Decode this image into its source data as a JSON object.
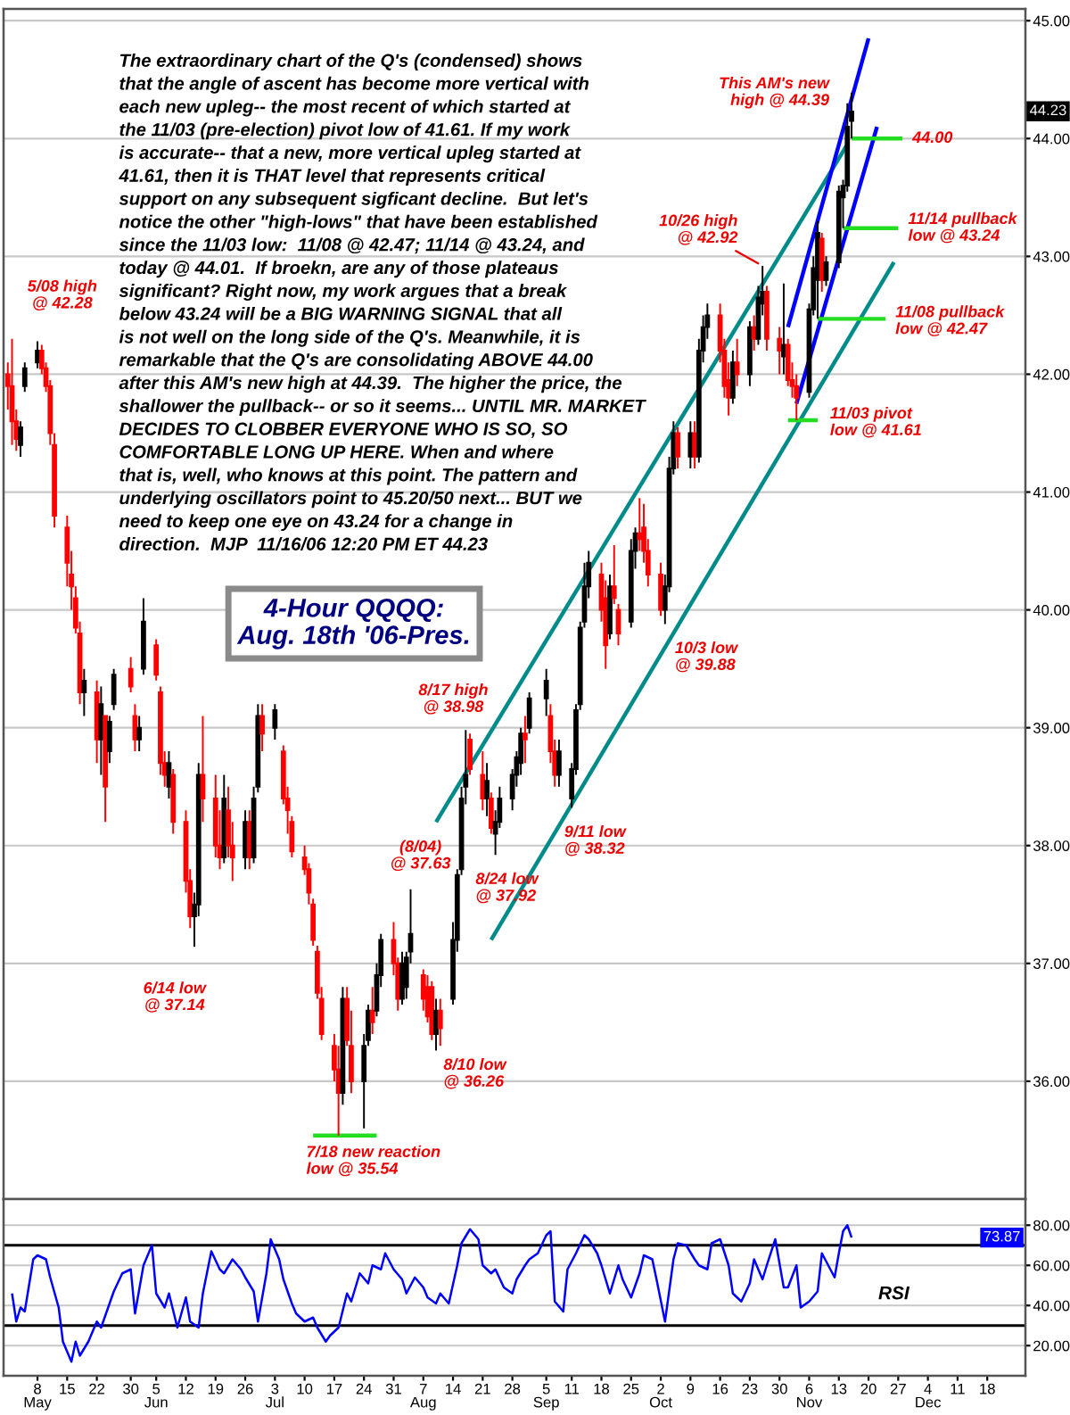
{
  "chart_data": [
    {
      "type": "candlestick",
      "title": "4-Hour QQQQ:\nAug. 18th '06-Pres.",
      "x": [
        "2006-05-01",
        "2006-05-02",
        "2006-05-03",
        "2006-05-04",
        "2006-05-05",
        "2006-05-08",
        "2006-05-09",
        "2006-05-10",
        "2006-05-11",
        "2006-05-12",
        "2006-05-15",
        "2006-05-16",
        "2006-05-17",
        "2006-05-18",
        "2006-05-19",
        "2006-05-22",
        "2006-05-23",
        "2006-05-24",
        "2006-05-25",
        "2006-05-26",
        "2006-05-30",
        "2006-05-31",
        "2006-06-01",
        "2006-06-02",
        "2006-06-05",
        "2006-06-06",
        "2006-06-07",
        "2006-06-08",
        "2006-06-09",
        "2006-06-12",
        "2006-06-13",
        "2006-06-14",
        "2006-06-15",
        "2006-06-16",
        "2006-06-19",
        "2006-06-20",
        "2006-06-21",
        "2006-06-22",
        "2006-06-23",
        "2006-06-26",
        "2006-06-27",
        "2006-06-28",
        "2006-06-29",
        "2006-06-30",
        "2006-07-03",
        "2006-07-05",
        "2006-07-06",
        "2006-07-07",
        "2006-07-10",
        "2006-07-11",
        "2006-07-12",
        "2006-07-13",
        "2006-07-14",
        "2006-07-17",
        "2006-07-18",
        "2006-07-19",
        "2006-07-20",
        "2006-07-21",
        "2006-07-24",
        "2006-07-25",
        "2006-07-26",
        "2006-07-27",
        "2006-07-28",
        "2006-07-31",
        "2006-08-01",
        "2006-08-02",
        "2006-08-03",
        "2006-08-04",
        "2006-08-07",
        "2006-08-08",
        "2006-08-09",
        "2006-08-10",
        "2006-08-11",
        "2006-08-14",
        "2006-08-15",
        "2006-08-16",
        "2006-08-17",
        "2006-08-18",
        "2006-08-21",
        "2006-08-22",
        "2006-08-23",
        "2006-08-24",
        "2006-08-25",
        "2006-08-28",
        "2006-08-29",
        "2006-08-30",
        "2006-08-31",
        "2006-09-01",
        "2006-09-05",
        "2006-09-06",
        "2006-09-07",
        "2006-09-08",
        "2006-09-11",
        "2006-09-12",
        "2006-09-13",
        "2006-09-14",
        "2006-09-15",
        "2006-09-18",
        "2006-09-19",
        "2006-09-20",
        "2006-09-21",
        "2006-09-22",
        "2006-09-25",
        "2006-09-26",
        "2006-09-27",
        "2006-09-28",
        "2006-09-29",
        "2006-10-02",
        "2006-10-03",
        "2006-10-04",
        "2006-10-05",
        "2006-10-06",
        "2006-10-09",
        "2006-10-10",
        "2006-10-11",
        "2006-10-12",
        "2006-10-13",
        "2006-10-16",
        "2006-10-17",
        "2006-10-18",
        "2006-10-19",
        "2006-10-20",
        "2006-10-23",
        "2006-10-24",
        "2006-10-25",
        "2006-10-26",
        "2006-10-27",
        "2006-10-30",
        "2006-10-31",
        "2006-11-01",
        "2006-11-02",
        "2006-11-03",
        "2006-11-06",
        "2006-11-07",
        "2006-11-08",
        "2006-11-09",
        "2006-11-10",
        "2006-11-13",
        "2006-11-14",
        "2006-11-15",
        "2006-11-16"
      ],
      "ohlc": [
        [
          42.0,
          42.1,
          41.7,
          41.9
        ],
        [
          41.9,
          42.3,
          41.4,
          41.6
        ],
        [
          41.6,
          41.7,
          41.35,
          41.45
        ],
        [
          41.4,
          41.6,
          41.3,
          41.55
        ],
        [
          41.9,
          42.1,
          41.85,
          42.05
        ],
        [
          42.1,
          42.28,
          42.05,
          42.2
        ],
        [
          42.2,
          42.25,
          42.0,
          42.05
        ],
        [
          42.05,
          42.1,
          41.85,
          41.9
        ],
        [
          41.9,
          41.95,
          41.4,
          41.5
        ],
        [
          41.4,
          41.5,
          40.7,
          40.8
        ],
        [
          40.7,
          40.8,
          40.2,
          40.4
        ],
        [
          40.3,
          40.5,
          40.0,
          40.2
        ],
        [
          40.1,
          40.2,
          39.8,
          39.85
        ],
        [
          39.8,
          39.9,
          39.2,
          39.3
        ],
        [
          39.3,
          39.5,
          39.1,
          39.4
        ],
        [
          39.3,
          39.4,
          38.7,
          38.9
        ],
        [
          38.9,
          39.35,
          38.6,
          39.2
        ],
        [
          39.1,
          39.1,
          38.2,
          38.5
        ],
        [
          38.8,
          39.1,
          38.7,
          39.05
        ],
        [
          39.2,
          39.5,
          39.15,
          39.45
        ],
        [
          39.5,
          39.6,
          39.3,
          39.35
        ],
        [
          39.1,
          39.2,
          38.8,
          38.9
        ],
        [
          38.9,
          39.1,
          38.8,
          39.0
        ],
        [
          39.5,
          40.1,
          39.45,
          39.9
        ],
        [
          39.7,
          39.75,
          39.4,
          39.45
        ],
        [
          39.3,
          39.35,
          38.6,
          38.7
        ],
        [
          38.7,
          38.8,
          38.5,
          38.6
        ],
        [
          38.5,
          38.8,
          38.4,
          38.7
        ],
        [
          38.6,
          38.65,
          38.1,
          38.2
        ],
        [
          38.2,
          38.3,
          37.6,
          37.7
        ],
        [
          37.7,
          37.8,
          37.3,
          37.4
        ],
        [
          37.4,
          37.6,
          37.14,
          37.5
        ],
        [
          37.5,
          38.7,
          37.4,
          38.6
        ],
        [
          38.6,
          39.1,
          38.2,
          38.4
        ],
        [
          38.4,
          38.6,
          37.9,
          38.0
        ],
        [
          38.0,
          38.3,
          37.8,
          37.9
        ],
        [
          37.9,
          38.6,
          37.85,
          38.4
        ],
        [
          38.3,
          38.5,
          37.9,
          38.0
        ],
        [
          38.0,
          38.2,
          37.7,
          37.9
        ],
        [
          37.9,
          38.3,
          37.8,
          38.2
        ],
        [
          38.2,
          38.3,
          37.8,
          37.9
        ],
        [
          37.9,
          38.5,
          37.85,
          38.4
        ],
        [
          38.5,
          39.2,
          38.45,
          39.1
        ],
        [
          39.1,
          39.2,
          38.8,
          38.95
        ],
        [
          39.0,
          39.2,
          38.9,
          39.15
        ],
        [
          38.8,
          38.85,
          38.35,
          38.4
        ],
        [
          38.4,
          38.5,
          38.1,
          38.3
        ],
        [
          38.2,
          38.25,
          37.9,
          37.95
        ],
        [
          37.9,
          38.0,
          37.75,
          37.8
        ],
        [
          37.8,
          37.85,
          37.5,
          37.6
        ],
        [
          37.5,
          37.55,
          37.15,
          37.2
        ],
        [
          37.1,
          37.15,
          36.7,
          36.75
        ],
        [
          36.7,
          36.8,
          36.35,
          36.4
        ],
        [
          36.3,
          36.4,
          36.0,
          36.1
        ],
        [
          36.1,
          36.3,
          35.54,
          35.9
        ],
        [
          35.9,
          36.8,
          35.8,
          36.7
        ],
        [
          36.7,
          36.8,
          36.3,
          36.35
        ],
        [
          36.3,
          36.6,
          35.9,
          36.0
        ],
        [
          36.0,
          36.4,
          35.6,
          36.3
        ],
        [
          36.35,
          36.65,
          36.3,
          36.6
        ],
        [
          36.6,
          36.8,
          36.4,
          36.5
        ],
        [
          36.6,
          37.0,
          36.55,
          36.9
        ],
        [
          36.9,
          37.25,
          36.8,
          37.2
        ],
        [
          37.2,
          37.35,
          36.9,
          37.0
        ],
        [
          37.0,
          37.05,
          36.6,
          36.7
        ],
        [
          36.7,
          37.1,
          36.65,
          37.0
        ],
        [
          36.8,
          37.1,
          36.7,
          37.05
        ],
        [
          37.1,
          37.63,
          37.0,
          37.25
        ],
        [
          36.9,
          36.95,
          36.6,
          36.7
        ],
        [
          36.8,
          36.9,
          36.5,
          36.55
        ],
        [
          36.8,
          36.85,
          36.35,
          36.4
        ],
        [
          36.4,
          36.7,
          36.26,
          36.6
        ],
        [
          36.6,
          36.7,
          36.3,
          36.45
        ],
        [
          36.7,
          37.35,
          36.65,
          37.2
        ],
        [
          37.2,
          37.8,
          37.1,
          37.75
        ],
        [
          37.8,
          38.5,
          37.75,
          38.4
        ],
        [
          38.5,
          38.98,
          38.35,
          38.6
        ],
        [
          38.9,
          38.95,
          38.6,
          38.65
        ],
        [
          38.6,
          38.8,
          38.3,
          38.4
        ],
        [
          38.4,
          38.7,
          38.25,
          38.55
        ],
        [
          38.4,
          38.45,
          38.1,
          38.15
        ],
        [
          38.1,
          38.3,
          37.92,
          38.2
        ],
        [
          38.2,
          38.5,
          38.15,
          38.4
        ],
        [
          38.4,
          38.65,
          38.3,
          38.6
        ],
        [
          38.6,
          38.8,
          38.5,
          38.75
        ],
        [
          38.7,
          39.0,
          38.6,
          38.95
        ],
        [
          38.95,
          39.1,
          38.7,
          38.9
        ],
        [
          39.0,
          39.3,
          38.95,
          39.25
        ],
        [
          39.25,
          39.5,
          39.1,
          39.4
        ],
        [
          39.1,
          39.2,
          38.7,
          38.8
        ],
        [
          38.8,
          38.9,
          38.5,
          38.6
        ],
        [
          38.6,
          38.9,
          38.5,
          38.8
        ],
        [
          38.4,
          38.7,
          38.32,
          38.65
        ],
        [
          38.65,
          39.2,
          38.6,
          39.15
        ],
        [
          39.2,
          39.9,
          39.15,
          39.85
        ],
        [
          39.9,
          40.4,
          39.85,
          40.2
        ],
        [
          40.2,
          40.5,
          40.1,
          40.4
        ],
        [
          40.3,
          40.4,
          39.9,
          40.0
        ],
        [
          40.1,
          40.25,
          39.5,
          39.7
        ],
        [
          39.8,
          40.3,
          39.75,
          40.2
        ],
        [
          40.2,
          40.55,
          40.05,
          40.1
        ],
        [
          40.0,
          40.05,
          39.7,
          39.8
        ],
        [
          39.9,
          40.6,
          39.85,
          40.5
        ],
        [
          40.5,
          40.7,
          40.35,
          40.65
        ],
        [
          40.65,
          40.95,
          40.5,
          40.6
        ],
        [
          40.7,
          40.9,
          40.4,
          40.5
        ],
        [
          40.5,
          40.6,
          40.2,
          40.3
        ],
        [
          40.3,
          40.4,
          39.95,
          40.0
        ],
        [
          40.0,
          40.3,
          39.88,
          40.2
        ],
        [
          40.2,
          41.3,
          40.15,
          41.2
        ],
        [
          41.2,
          41.6,
          41.15,
          41.5
        ],
        [
          41.5,
          41.55,
          41.2,
          41.3
        ],
        [
          41.3,
          41.6,
          41.2,
          41.5
        ],
        [
          41.5,
          41.6,
          41.2,
          41.3
        ],
        [
          41.3,
          42.3,
          41.25,
          42.2
        ],
        [
          42.2,
          42.5,
          42.1,
          42.4
        ],
        [
          42.4,
          42.6,
          42.3,
          42.5
        ],
        [
          42.5,
          42.6,
          42.1,
          42.2
        ],
        [
          42.2,
          42.3,
          41.8,
          41.9
        ],
        [
          41.95,
          42.1,
          41.65,
          41.8
        ],
        [
          41.8,
          42.2,
          41.75,
          42.1
        ],
        [
          42.1,
          42.3,
          41.9,
          42.0
        ],
        [
          42.0,
          42.45,
          41.9,
          42.4
        ],
        [
          42.4,
          42.5,
          42.2,
          42.3
        ],
        [
          42.3,
          42.75,
          42.25,
          42.65
        ],
        [
          42.6,
          42.92,
          42.5,
          42.7
        ],
        [
          42.7,
          42.75,
          42.2,
          42.3
        ],
        [
          42.3,
          42.4,
          42.0,
          42.2
        ],
        [
          42.15,
          42.77,
          42.0,
          42.25
        ],
        [
          42.25,
          42.3,
          41.9,
          41.95
        ],
        [
          41.95,
          42.1,
          41.8,
          41.9
        ],
        [
          41.9,
          42.0,
          41.61,
          41.8
        ],
        [
          41.85,
          42.6,
          41.8,
          42.55
        ],
        [
          42.55,
          43.0,
          42.5,
          42.9
        ],
        [
          42.8,
          43.3,
          42.47,
          43.2
        ],
        [
          43.15,
          43.2,
          42.7,
          42.8
        ],
        [
          42.8,
          43.0,
          42.75,
          42.95
        ],
        [
          42.95,
          43.6,
          42.9,
          43.55
        ],
        [
          43.5,
          43.65,
          43.24,
          43.6
        ],
        [
          43.6,
          44.3,
          43.55,
          44.1
        ],
        [
          44.15,
          44.39,
          44.0,
          44.23
        ]
      ],
      "colors": [
        "#ff0000",
        "#ff0000",
        "#ff0000",
        "#000000",
        "#000000",
        "#000000",
        "#ff0000",
        "#ff0000",
        "#ff0000",
        "#ff0000",
        "#ff0000",
        "#ff0000",
        "#ff0000",
        "#ff0000",
        "#000000",
        "#ff0000",
        "#000000",
        "#ff0000",
        "#000000",
        "#000000",
        "#ff0000",
        "#ff0000",
        "#000000",
        "#000000",
        "#ff0000",
        "#ff0000",
        "#ff0000",
        "#000000",
        "#ff0000",
        "#ff0000",
        "#ff0000",
        "#000000",
        "#000000",
        "#ff0000",
        "#ff0000",
        "#ff0000",
        "#000000",
        "#ff0000",
        "#ff0000",
        "#000000",
        "#ff0000",
        "#000000",
        "#000000",
        "#ff0000",
        "#000000",
        "#ff0000",
        "#ff0000",
        "#ff0000",
        "#ff0000",
        "#ff0000",
        "#ff0000",
        "#ff0000",
        "#ff0000",
        "#ff0000",
        "#ff0000",
        "#000000",
        "#ff0000",
        "#ff0000",
        "#000000",
        "#000000",
        "#ff0000",
        "#000000",
        "#000000",
        "#ff0000",
        "#ff0000",
        "#000000",
        "#000000",
        "#000000",
        "#ff0000",
        "#ff0000",
        "#ff0000",
        "#000000",
        "#ff0000",
        "#000000",
        "#000000",
        "#000000",
        "#000000",
        "#ff0000",
        "#ff0000",
        "#000000",
        "#ff0000",
        "#000000",
        "#000000",
        "#000000",
        "#000000",
        "#000000",
        "#ff0000",
        "#000000",
        "#000000",
        "#ff0000",
        "#ff0000",
        "#000000",
        "#000000",
        "#000000",
        "#000000",
        "#000000",
        "#000000",
        "#ff0000",
        "#ff0000",
        "#000000",
        "#ff0000",
        "#ff0000",
        "#000000",
        "#000000",
        "#ff0000",
        "#ff0000",
        "#ff0000",
        "#ff0000",
        "#000000",
        "#000000",
        "#000000",
        "#ff0000",
        "#000000",
        "#ff0000",
        "#000000",
        "#000000",
        "#000000",
        "#ff0000",
        "#ff0000",
        "#ff0000",
        "#000000",
        "#ff0000",
        "#000000",
        "#ff0000",
        "#000000",
        "#000000",
        "#ff0000",
        "#ff0000",
        "#000000",
        "#ff0000",
        "#ff0000",
        "#ff0000",
        "#000000",
        "#000000",
        "#000000",
        "#ff0000",
        "#000000",
        "#000000",
        "#000000",
        "#000000",
        "#000000"
      ],
      "series": [
        {
          "type": "line",
          "color": "#008b8b",
          "x": [
            "2006-08-10",
            "2006-11-15"
          ],
          "values": [
            38.2,
            43.95
          ]
        },
        {
          "type": "line",
          "color": "#008b8b",
          "x": [
            "2006-08-23",
            "2006-11-26"
          ],
          "values": [
            37.2,
            42.95
          ]
        },
        {
          "type": "line",
          "color": "#0000ff",
          "x": [
            "2006-11-01",
            "2006-11-20"
          ],
          "values": [
            42.4,
            44.85
          ]
        },
        {
          "type": "line",
          "color": "#0000ff",
          "x": [
            "2006-11-03",
            "2006-11-22"
          ],
          "values": [
            41.75,
            44.1
          ]
        },
        {
          "type": "line",
          "color": "#22dd22",
          "x": [
            "2006-11-16",
            "2006-11-28"
          ],
          "values": [
            44.0,
            44.0
          ]
        },
        {
          "type": "line",
          "color": "#22dd22",
          "x": [
            "2006-11-14",
            "2006-11-27"
          ],
          "values": [
            43.24,
            43.24
          ]
        },
        {
          "type": "line",
          "color": "#22dd22",
          "x": [
            "2006-11-08",
            "2006-11-24"
          ],
          "values": [
            42.47,
            42.47
          ]
        },
        {
          "type": "line",
          "color": "#22dd22",
          "x": [
            "2006-11-01",
            "2006-11-08"
          ],
          "values": [
            41.61,
            41.61
          ]
        },
        {
          "type": "line",
          "color": "#22dd22",
          "x": [
            "2006-07-12",
            "2006-07-27"
          ],
          "values": [
            35.54,
            35.54
          ]
        }
      ],
      "xlim": [
        "2006-04-30",
        "2006-12-27"
      ],
      "ylim": [
        35.0,
        45.1
      ],
      "yticks": [
        {
          "value": 36,
          "label": "36.00"
        },
        {
          "value": 37,
          "label": "37.00"
        },
        {
          "value": 38,
          "label": "38.00"
        },
        {
          "value": 39,
          "label": "39.00"
        },
        {
          "value": 40,
          "label": "40.00"
        },
        {
          "value": 41,
          "label": "41.00"
        },
        {
          "value": 42,
          "label": "42.00"
        },
        {
          "value": 43,
          "label": "43.00"
        },
        {
          "value": 44,
          "label": "44.00"
        },
        {
          "value": 45,
          "label": "45.00"
        }
      ],
      "grid": "y",
      "tick_labels": "y",
      "annotations": [
        "The extraordinary chart of the Q's (condensed) shows\nthat the angle of ascent has become more vertical with\neach new upleg-- the most recent of which started at\nthe 11/03 (pre-election) pivot low of 41.61. If my work\nis accurate-- that a new, more vertical upleg started at\n41.61, then it is THAT level that represents critical\nsupport on any subsequent sigficant decline.  But let's\nnotice the other \"high-lows\" that have been established\nsince the 11/03 low:  11/08 @ 42.47; 11/14 @ 43.24, and\ntoday @ 44.01.  If broekn, are any of those plateaus\nsignificant? Right now, my work argues that a break\nbelow 43.24 will be a BIG WARNING SIGNAL that all\nis not well on the long side of the Q's. Meanwhile, it is\nremarkable that the Q's are consolidating ABOVE 44.00\nafter this AM's new high at 44.39.  The higher the price, the\nshallower the pullback-- or so it seems... UNTIL MR. MARKET\nDECIDES TO CLOBBER EVERYONE WHO IS SO, SO\nCOMFORTABLE LONG UP HERE. When and where\nthat is, well, who knows at this point. The pattern and\nunderlying oscillators point to 45.20/50 next... BUT we\nneed to keep one eye on 43.24 for a change in\ndirection.  MJP  11/16/06 12:20 PM ET 44.23",
        {
          "text": "5/08 high\n@ 42.28",
          "x": "2006-05-08",
          "y": 42.28
        },
        {
          "text": "6/14 low\n@ 37.14",
          "x": "2006-06-14",
          "y": 37.14
        },
        {
          "text": "7/18 new reaction\nlow @ 35.54",
          "x": "2006-07-18",
          "y": 35.54
        },
        {
          "text": "8/10 low\n@ 36.26",
          "x": "2006-08-10",
          "y": 36.26
        },
        {
          "text": "(8/04)\n@ 37.63",
          "x": "2006-08-04",
          "y": 37.63
        },
        {
          "text": "8/17 high\n@ 38.98",
          "x": "2006-08-17",
          "y": 38.98
        },
        {
          "text": "8/24 low\n@ 37.92",
          "x": "2006-08-24",
          "y": 37.92
        },
        {
          "text": "9/11 low\n@ 38.32",
          "x": "2006-09-11",
          "y": 38.32
        },
        {
          "text": "10/3 low\n@ 39.88",
          "x": "2006-10-03",
          "y": 39.88
        },
        {
          "text": "10/26 high\n@ 42.92",
          "x": "2006-10-26",
          "y": 42.92
        },
        {
          "text": "This AM's new\nhigh @ 44.39",
          "x": "2006-11-16",
          "y": 44.39
        },
        {
          "text": "44.00",
          "x": "2006-11-28",
          "y": 44.0
        },
        {
          "text": "11/14 pullback\nlow @ 43.24",
          "x": "2006-11-27",
          "y": 43.24
        },
        {
          "text": "11/08 pullback\nlow @ 42.47",
          "x": "2006-11-24",
          "y": 42.47
        },
        {
          "text": "11/03 pivot\nlow @ 41.61",
          "x": "2006-11-08",
          "y": 41.61
        },
        "44.23"
      ]
    },
    {
      "type": "line",
      "series": [
        {
          "color": "#0000ff",
          "x": [
            "2006-05-02",
            "2006-05-03",
            "2006-05-04",
            "2006-05-05",
            "2006-05-07",
            "2006-05-08",
            "2006-05-10",
            "2006-05-11",
            "2006-05-13",
            "2006-05-14",
            "2006-05-16",
            "2006-05-17",
            "2006-05-18",
            "2006-05-20",
            "2006-05-22",
            "2006-05-23",
            "2006-05-25",
            "2006-05-26",
            "2006-05-28",
            "2006-05-30",
            "2006-05-31",
            "2006-06-02",
            "2006-06-04",
            "2006-06-05",
            "2006-06-07",
            "2006-06-08",
            "2006-06-10",
            "2006-06-12",
            "2006-06-13",
            "2006-06-15",
            "2006-06-16",
            "2006-06-18",
            "2006-06-20",
            "2006-06-21",
            "2006-06-23",
            "2006-06-25",
            "2006-06-26",
            "2006-06-28",
            "2006-06-29",
            "2006-07-01",
            "2006-07-02",
            "2006-07-04",
            "2006-07-05",
            "2006-07-07",
            "2006-07-08",
            "2006-07-10",
            "2006-07-12",
            "2006-07-13",
            "2006-07-15",
            "2006-07-16",
            "2006-07-18",
            "2006-07-20",
            "2006-07-21",
            "2006-07-23",
            "2006-07-25",
            "2006-07-26",
            "2006-07-28",
            "2006-07-29",
            "2006-07-31",
            "2006-08-02",
            "2006-08-03",
            "2006-08-05",
            "2006-08-07",
            "2006-08-08",
            "2006-08-10",
            "2006-08-11",
            "2006-08-13",
            "2006-08-15",
            "2006-08-16",
            "2006-08-18",
            "2006-08-20",
            "2006-08-21",
            "2006-08-23",
            "2006-08-24",
            "2006-08-26",
            "2006-08-28",
            "2006-08-29",
            "2006-08-31",
            "2006-09-01",
            "2006-09-03",
            "2006-09-05",
            "2006-09-06",
            "2006-09-07",
            "2006-09-09",
            "2006-09-10",
            "2006-09-12",
            "2006-09-14",
            "2006-09-15",
            "2006-09-17",
            "2006-09-18",
            "2006-09-20",
            "2006-09-22",
            "2006-09-23",
            "2006-09-25",
            "2006-09-27",
            "2006-09-28",
            "2006-09-30",
            "2006-10-01",
            "2006-10-03",
            "2006-10-05",
            "2006-10-06",
            "2006-10-08",
            "2006-10-10",
            "2006-10-11",
            "2006-10-13",
            "2006-10-14",
            "2006-10-16",
            "2006-10-18",
            "2006-10-19",
            "2006-10-21",
            "2006-10-23",
            "2006-10-24",
            "2006-10-26",
            "2006-10-27",
            "2006-10-29",
            "2006-10-31",
            "2006-11-01",
            "2006-11-03",
            "2006-11-04",
            "2006-11-06",
            "2006-11-08",
            "2006-11-09",
            "2006-11-11",
            "2006-11-12",
            "2006-11-13",
            "2006-11-14",
            "2006-11-15",
            "2006-11-16"
          ],
          "values": [
            46,
            32,
            39,
            37,
            63,
            65,
            63,
            54,
            39,
            22,
            12,
            22,
            15,
            22,
            32,
            29,
            41,
            47,
            56,
            58,
            36,
            60,
            70,
            46,
            39,
            46,
            29,
            44,
            32,
            29,
            46,
            67,
            58,
            56,
            63,
            58,
            54,
            47,
            32,
            56,
            73,
            63,
            53,
            41,
            36,
            32,
            34,
            29,
            22,
            25,
            29,
            46,
            42,
            56,
            51,
            60,
            58,
            66,
            58,
            53,
            46,
            54,
            49,
            44,
            41,
            46,
            41,
            60,
            71,
            78,
            73,
            60,
            56,
            58,
            49,
            46,
            53,
            60,
            63,
            66,
            75,
            77,
            42,
            37,
            58,
            66,
            75,
            73,
            66,
            60,
            46,
            60,
            53,
            44,
            56,
            65,
            63,
            53,
            32,
            63,
            71,
            70,
            63,
            60,
            58,
            71,
            73,
            60,
            46,
            42,
            51,
            63,
            53,
            60,
            73,
            49,
            49,
            60,
            39,
            42,
            47,
            66,
            58,
            54,
            66,
            77,
            80,
            73.87
          ]
        }
      ],
      "xlim": [
        "2006-04-30",
        "2006-12-27"
      ],
      "xticks": [
        {
          "value": "2006-05-08",
          "label": "8\nMay"
        },
        {
          "value": "2006-05-15",
          "label": "15"
        },
        {
          "value": "2006-05-22",
          "label": "22"
        },
        {
          "value": "2006-05-30",
          "label": "30"
        },
        {
          "value": "2006-06-05",
          "label": "5\nJun"
        },
        {
          "value": "2006-06-12",
          "label": "12"
        },
        {
          "value": "2006-06-19",
          "label": "19"
        },
        {
          "value": "2006-06-26",
          "label": "26"
        },
        {
          "value": "2006-07-03",
          "label": "3\nJul"
        },
        {
          "value": "2006-07-10",
          "label": "10"
        },
        {
          "value": "2006-07-17",
          "label": "17"
        },
        {
          "value": "2006-07-24",
          "label": "24"
        },
        {
          "value": "2006-07-31",
          "label": "31"
        },
        {
          "value": "2006-08-07",
          "label": "7\nAug"
        },
        {
          "value": "2006-08-14",
          "label": "14"
        },
        {
          "value": "2006-08-21",
          "label": "21"
        },
        {
          "value": "2006-08-28",
          "label": "28"
        },
        {
          "value": "2006-09-05",
          "label": "5\nSep"
        },
        {
          "value": "2006-09-11",
          "label": "11"
        },
        {
          "value": "2006-09-18",
          "label": "18"
        },
        {
          "value": "2006-09-25",
          "label": "25"
        },
        {
          "value": "2006-10-02",
          "label": "2\nOct"
        },
        {
          "value": "2006-10-09",
          "label": "9"
        },
        {
          "value": "2006-10-16",
          "label": "16"
        },
        {
          "value": "2006-10-23",
          "label": "23"
        },
        {
          "value": "2006-10-30",
          "label": "30"
        },
        {
          "value": "2006-11-06",
          "label": "6\nNov"
        },
        {
          "value": "2006-11-13",
          "label": "13"
        },
        {
          "value": "2006-11-20",
          "label": "20"
        },
        {
          "value": "2006-11-27",
          "label": "27"
        },
        {
          "value": "2006-12-04",
          "label": "4\nDec"
        },
        {
          "value": "2006-12-11",
          "label": "11"
        },
        {
          "value": "2006-12-18",
          "label": "18"
        }
      ],
      "ylim": [
        5,
        93
      ],
      "yticks": [
        {
          "value": 20,
          "label": "20.00"
        },
        {
          "value": 40,
          "label": "40.00"
        },
        {
          "value": 60,
          "label": "60.00"
        },
        {
          "value": 80,
          "label": "80.00"
        }
      ],
      "grid": "y",
      "ref_lines": [
        {
          "axis": "y",
          "value": 70,
          "color": "#000000"
        },
        {
          "axis": "y",
          "value": 30,
          "color": "#000000"
        }
      ],
      "annotations": [
        "RSI",
        {
          "text": "73.87",
          "x": "2006-12-27",
          "y": 73.87
        }
      ]
    }
  ]
}
